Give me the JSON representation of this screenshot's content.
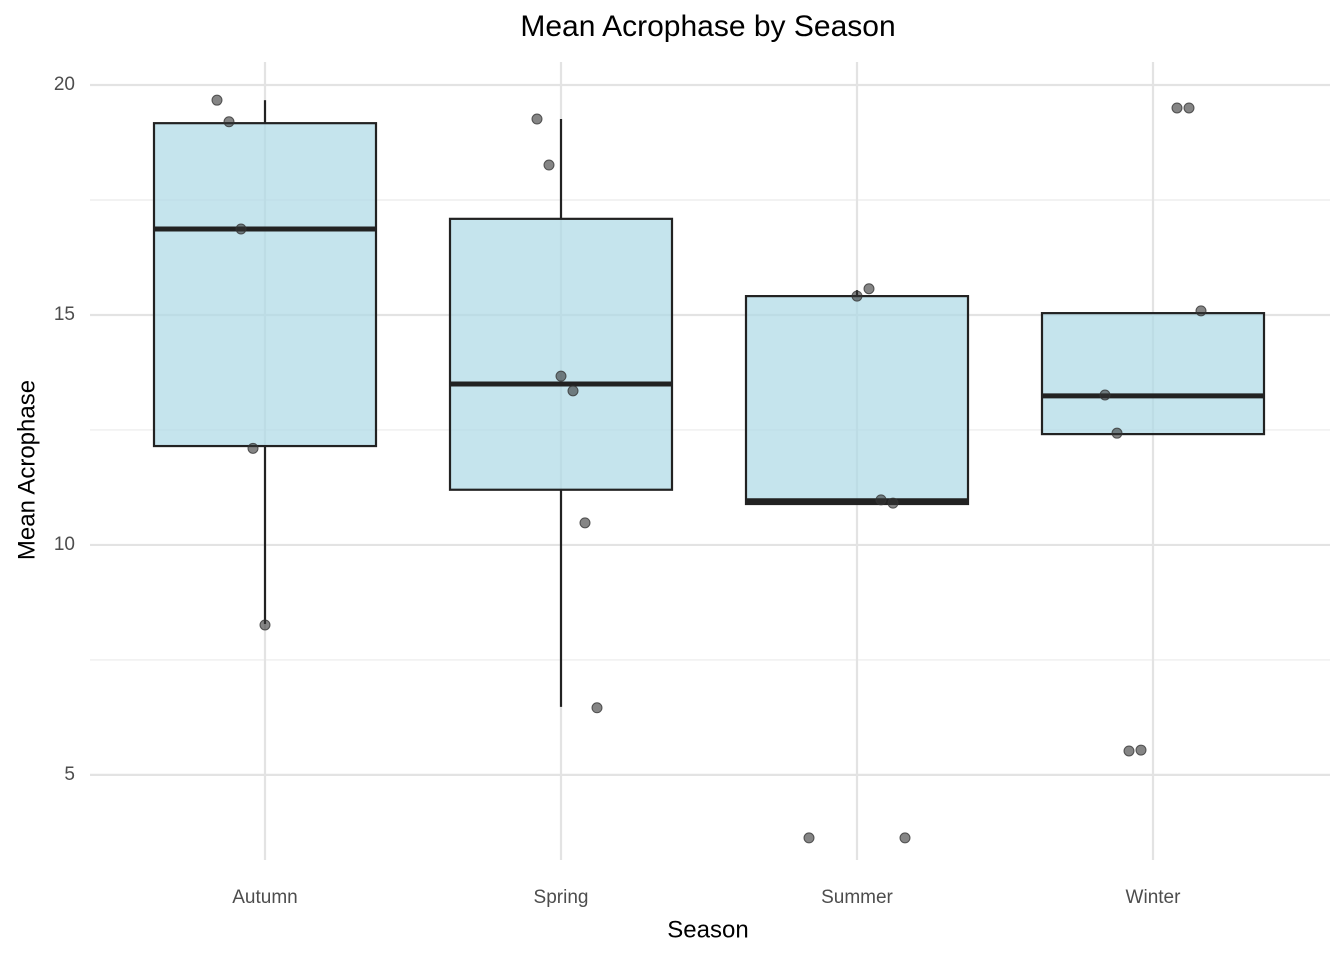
{
  "chart_data": {
    "type": "box",
    "title": "Mean Acrophase by Season",
    "x_label": "Season",
    "y_label": "Mean Acrophase",
    "categories": [
      "Autumn",
      "Spring",
      "Summer",
      "Winter"
    ],
    "boxes": [
      {
        "whisker_low": 8.28,
        "q1": 12.15,
        "median": 16.87,
        "q3": 19.17,
        "whisker_high": 19.67
      },
      {
        "whisker_low": 6.48,
        "q1": 11.2,
        "median": 13.5,
        "q3": 17.09,
        "whisker_high": 19.26
      },
      {
        "whisker_low": 10.89,
        "q1": 10.89,
        "median": 10.96,
        "q3": 15.41,
        "whisker_high": 15.54
      },
      {
        "whisker_low": 12.41,
        "q1": 12.41,
        "median": 13.24,
        "q3": 15.04,
        "whisker_high": 15.04
      }
    ],
    "points": [
      [
        19.67,
        19.2,
        16.87,
        12.1,
        8.26
      ],
      [
        19.26,
        18.26,
        13.67,
        13.35,
        10.48,
        6.46
      ],
      [
        15.41,
        15.57,
        10.98,
        10.91,
        3.63,
        3.63
      ],
      [
        19.5,
        19.5,
        15.09,
        13.26,
        12.43,
        5.52,
        5.54
      ]
    ],
    "box_color": "#add8e6",
    "point_color": "#333333",
    "ylim": [
      3.15,
      20.5
    ],
    "yticks": [
      5,
      10,
      15,
      20
    ],
    "minor_yticks": [
      7.5,
      12.5,
      17.5
    ],
    "grid": true
  }
}
